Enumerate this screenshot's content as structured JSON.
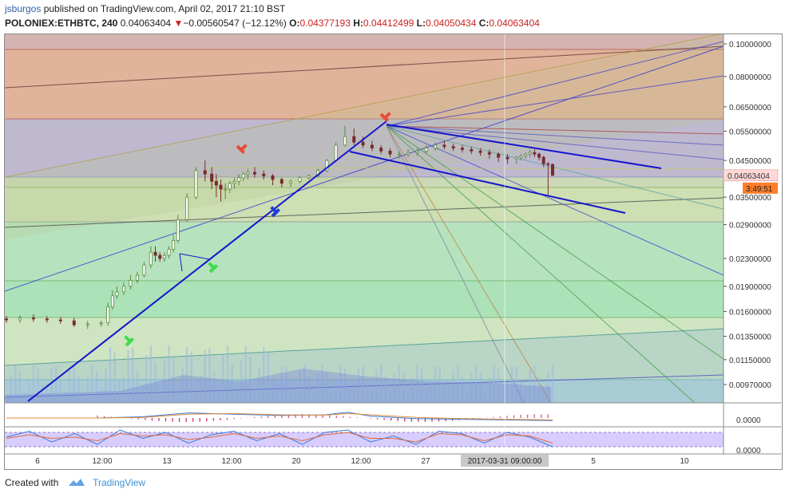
{
  "header": {
    "username": "jsburgos",
    "published_text": " published on TradingView.com, April 02, 2017 21:10 BST",
    "symbol": "POLONIEX:ETHBTC, 240",
    "last_price": "0.04063404",
    "change_arrow": "▼",
    "change": "−0.00560547 (−12.12%)",
    "open_label": "O:",
    "open": "0.04377193",
    "high_label": "H:",
    "high": "0.04412499",
    "low_label": "L:",
    "low": "0.04050434",
    "close_label": "C:",
    "close": "0.04063404"
  },
  "footer": {
    "created_with": "Created with",
    "brand": "TradingView"
  },
  "colors": {
    "up": "#5c8a3a",
    "down": "#7a2b2b",
    "trendline": "#1515cc",
    "price_label_bg": "#ffd8d8",
    "timer_bg": "#ff7e2a",
    "marker_red": "#e84a3a",
    "marker_blue": "#1f3fd1",
    "marker_green": "#3fdc4a"
  },
  "chart_data": [
    {
      "type": "line",
      "panel": "price",
      "scale": "log",
      "ylim": [
        0.0083,
        0.105
      ],
      "y_ticks": [
        "0.10000000",
        "0.08000000",
        "0.06500000",
        "0.05500000",
        "0.04500000",
        "0.03500000",
        "0.02900000",
        "0.02300000",
        "0.01900000",
        "0.01600000",
        "0.01350000",
        "0.01150000",
        "0.00970000"
      ],
      "y_tick_values": [
        0.1,
        0.08,
        0.065,
        0.055,
        0.045,
        0.035,
        0.029,
        0.023,
        0.019,
        0.016,
        0.0135,
        0.0115,
        0.0097
      ],
      "x_ticks": [
        "6",
        "12:00",
        "13",
        "12:00",
        "20",
        "12:00",
        "27",
        "2017-03-31 09:00:00",
        "5",
        "10"
      ],
      "price_label": "0.04063404",
      "timer_label": "3:49:51",
      "series": [
        {
          "x": [
            0,
            6,
            12,
            18,
            24,
            30,
            36,
            42,
            45,
            47,
            49,
            52,
            55,
            58,
            61,
            64,
            66,
            68,
            70,
            72,
            74,
            76,
            80,
            84,
            88,
            91,
            93,
            95,
            97,
            99,
            101,
            103,
            105,
            107,
            110,
            114,
            118,
            122,
            126,
            130,
            134,
            138,
            142,
            146,
            150,
            154,
            158,
            162,
            166,
            170,
            174,
            178,
            182,
            186,
            190,
            194,
            198,
            202,
            206,
            210,
            214,
            218,
            222,
            226,
            228,
            230,
            232,
            234,
            236,
            238,
            240,
            242
          ],
          "open": [
            0.0152,
            0.0151,
            0.0153,
            0.0152,
            0.0151,
            0.015,
            0.0146,
            0.0147,
            0.0148,
            0.0165,
            0.0178,
            0.0183,
            0.019,
            0.0198,
            0.0205,
            0.022,
            0.024,
            0.0235,
            0.023,
            0.0235,
            0.0245,
            0.026,
            0.03,
            0.035,
            0.042,
            0.041,
            0.039,
            0.038,
            0.037,
            0.037,
            0.0385,
            0.039,
            0.04,
            0.041,
            0.0415,
            0.041,
            0.0405,
            0.0395,
            0.0385,
            0.039,
            0.04,
            0.0405,
            0.042,
            0.045,
            0.05,
            0.053,
            0.051,
            0.05,
            0.049,
            0.048,
            0.047,
            0.047,
            0.0475,
            0.048,
            0.049,
            0.05,
            0.0495,
            0.049,
            0.0485,
            0.048,
            0.0475,
            0.047,
            0.046,
            0.0455,
            0.046,
            0.0465,
            0.047,
            0.0475,
            0.047,
            0.046,
            0.044,
            0.04377
          ],
          "high": [
            0.0155,
            0.0156,
            0.0157,
            0.0155,
            0.0154,
            0.0153,
            0.015,
            0.015,
            0.017,
            0.0185,
            0.019,
            0.0195,
            0.0205,
            0.021,
            0.0225,
            0.025,
            0.025,
            0.024,
            0.024,
            0.025,
            0.027,
            0.031,
            0.036,
            0.043,
            0.045,
            0.043,
            0.041,
            0.0395,
            0.0385,
            0.039,
            0.04,
            0.041,
            0.0415,
            0.0425,
            0.043,
            0.042,
            0.041,
            0.04,
            0.0395,
            0.0405,
            0.041,
            0.0425,
            0.0455,
            0.051,
            0.057,
            0.056,
            0.053,
            0.0515,
            0.05,
            0.049,
            0.048,
            0.0485,
            0.049,
            0.05,
            0.051,
            0.0515,
            0.0505,
            0.05,
            0.0495,
            0.049,
            0.0485,
            0.0475,
            0.047,
            0.0465,
            0.047,
            0.0475,
            0.0485,
            0.0485,
            0.0475,
            0.0465,
            0.0445,
            0.04412
          ],
          "low": [
            0.0148,
            0.0148,
            0.0149,
            0.0148,
            0.0147,
            0.0144,
            0.0142,
            0.0144,
            0.0145,
            0.0162,
            0.0174,
            0.0179,
            0.0186,
            0.0194,
            0.0202,
            0.0215,
            0.0225,
            0.0225,
            0.0225,
            0.023,
            0.024,
            0.0255,
            0.0295,
            0.0345,
            0.039,
            0.037,
            0.035,
            0.034,
            0.0345,
            0.036,
            0.037,
            0.038,
            0.039,
            0.0395,
            0.04,
            0.0395,
            0.038,
            0.0375,
            0.0375,
            0.0385,
            0.0395,
            0.04,
            0.0415,
            0.0445,
            0.0495,
            0.05,
            0.049,
            0.048,
            0.047,
            0.046,
            0.0455,
            0.046,
            0.0465,
            0.047,
            0.048,
            0.0485,
            0.048,
            0.0475,
            0.047,
            0.0465,
            0.0455,
            0.0445,
            0.044,
            0.044,
            0.045,
            0.0455,
            0.046,
            0.046,
            0.045,
            0.043,
            0.0355,
            0.0405
          ],
          "close": [
            0.0151,
            0.0153,
            0.0152,
            0.0151,
            0.015,
            0.0146,
            0.0147,
            0.0148,
            0.0165,
            0.0178,
            0.0183,
            0.019,
            0.0198,
            0.0205,
            0.022,
            0.024,
            0.0235,
            0.023,
            0.0235,
            0.0245,
            0.026,
            0.03,
            0.035,
            0.042,
            0.041,
            0.039,
            0.038,
            0.037,
            0.037,
            0.0385,
            0.039,
            0.04,
            0.041,
            0.0415,
            0.041,
            0.0405,
            0.0395,
            0.0385,
            0.039,
            0.04,
            0.0405,
            0.042,
            0.045,
            0.05,
            0.053,
            0.051,
            0.05,
            0.049,
            0.048,
            0.047,
            0.047,
            0.0475,
            0.048,
            0.049,
            0.05,
            0.0495,
            0.049,
            0.0485,
            0.048,
            0.0475,
            0.047,
            0.046,
            0.0455,
            0.046,
            0.0465,
            0.047,
            0.0475,
            0.047,
            0.046,
            0.044,
            0.04377,
            0.04063
          ]
        }
      ]
    },
    {
      "type": "line",
      "panel": "macd",
      "y_tick": "0.0000",
      "series": [
        {
          "name": "",
          "x": [
            0,
            40,
            60,
            80,
            100,
            120,
            140,
            150,
            160,
            180,
            200,
            220,
            240
          ],
          "values": [
            0,
            0,
            0.2,
            0.8,
            0.6,
            0.4,
            0.5,
            0.9,
            0.3,
            -0.1,
            -0.2,
            -0.3,
            -0.4
          ]
        },
        {
          "name": "",
          "x": [
            0,
            40,
            60,
            80,
            100,
            120,
            140,
            150,
            160,
            180,
            200,
            220,
            240
          ],
          "values": [
            0,
            0,
            0.1,
            0.6,
            0.7,
            0.5,
            0.45,
            0.7,
            0.5,
            0.1,
            -0.1,
            -0.2,
            -0.3
          ]
        }
      ]
    },
    {
      "type": "line",
      "panel": "stoch",
      "y_tick": "0.0000",
      "series": [
        {
          "name": "",
          "x": [
            0,
            10,
            20,
            30,
            40,
            50,
            60,
            70,
            80,
            90,
            100,
            110,
            120,
            130,
            140,
            150,
            160,
            170,
            180,
            190,
            200,
            210,
            220,
            230,
            240
          ],
          "values": [
            60,
            85,
            40,
            75,
            30,
            90,
            55,
            80,
            35,
            70,
            85,
            45,
            75,
            30,
            80,
            90,
            40,
            65,
            30,
            85,
            75,
            35,
            80,
            60,
            20
          ]
        },
        {
          "name": "",
          "x": [
            0,
            10,
            20,
            30,
            40,
            50,
            60,
            70,
            80,
            90,
            100,
            110,
            120,
            130,
            140,
            150,
            160,
            170,
            180,
            190,
            200,
            210,
            220,
            230,
            240
          ],
          "values": [
            55,
            70,
            55,
            60,
            45,
            75,
            65,
            70,
            50,
            60,
            75,
            55,
            65,
            45,
            70,
            80,
            55,
            55,
            40,
            75,
            70,
            45,
            70,
            65,
            35
          ]
        }
      ]
    }
  ]
}
